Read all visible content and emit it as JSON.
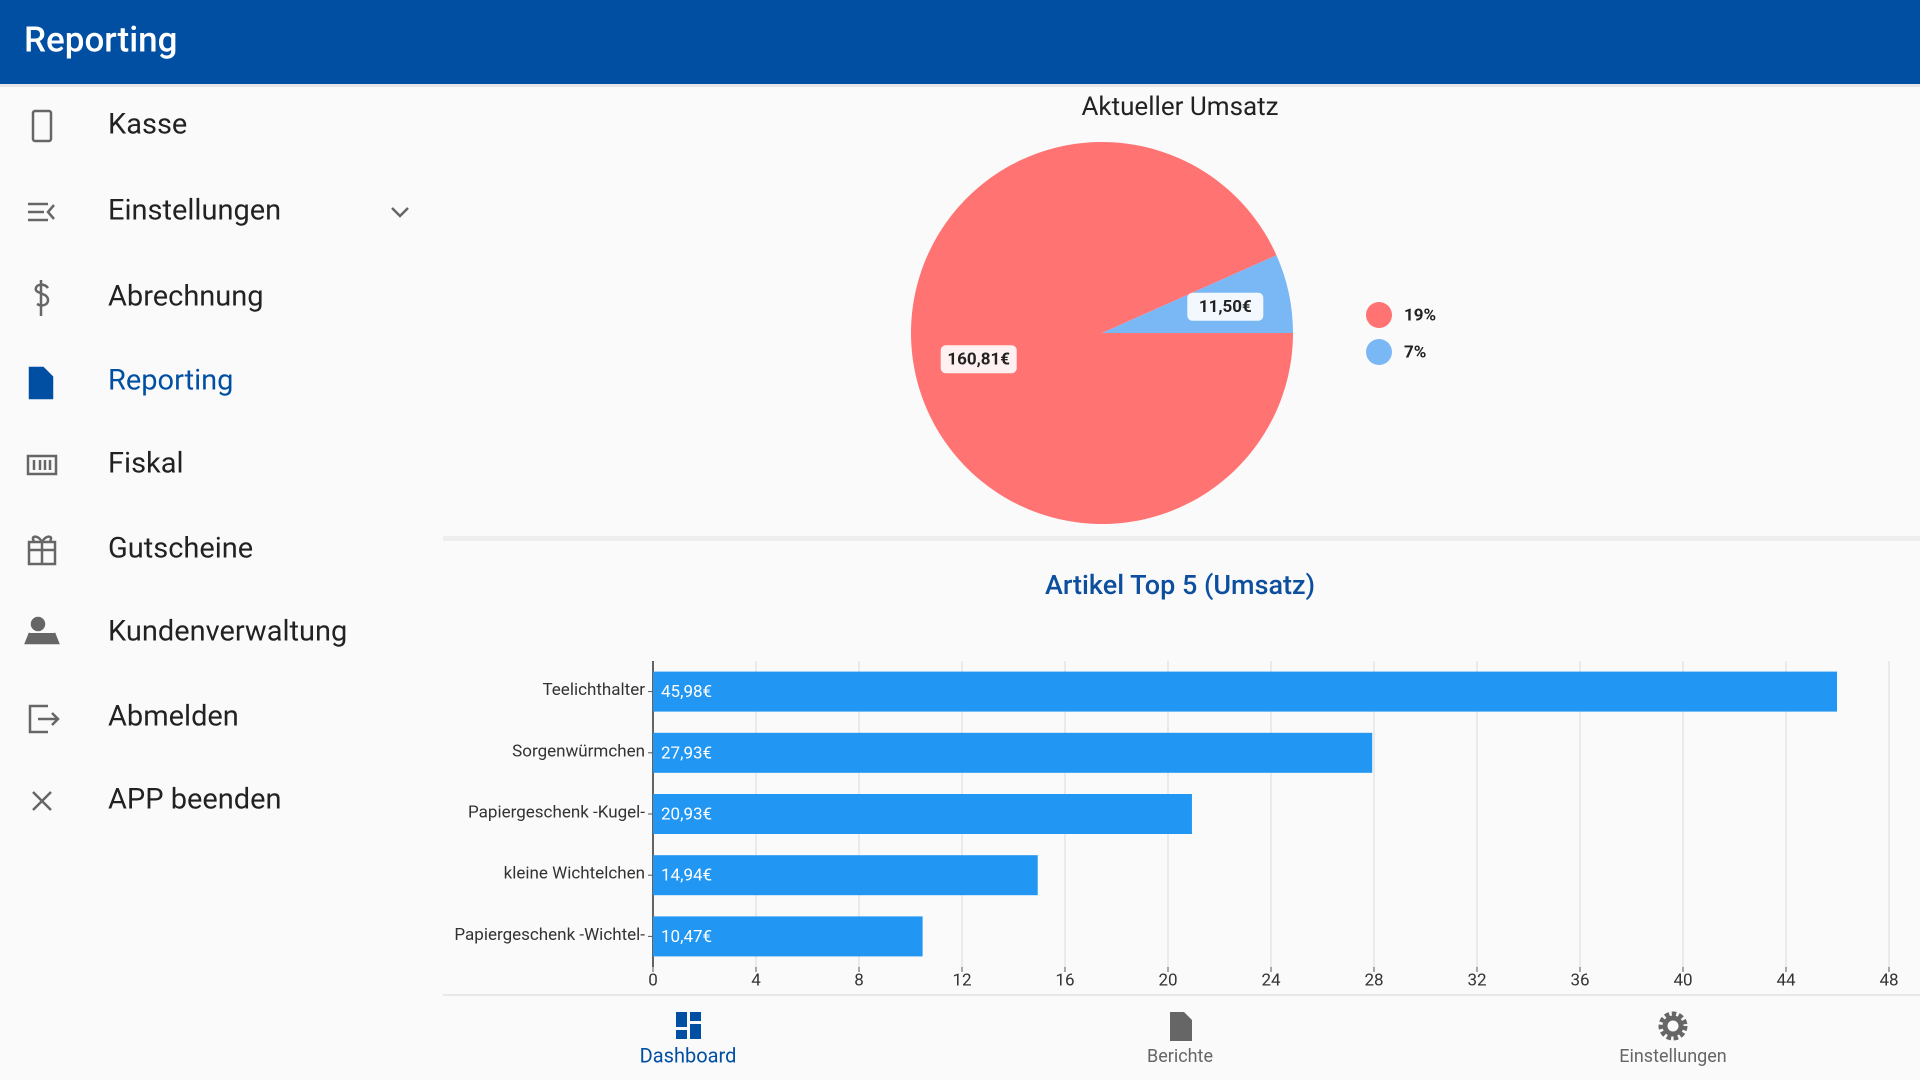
{
  "header": {
    "title": "Reporting"
  },
  "menu": {
    "items": [
      "Kasse",
      "Einstellungen",
      "Abrechnung",
      "Reporting",
      "Fiskal",
      "Gutscheine",
      "Kundenverwaltung",
      "Abmelden",
      "APP beenden"
    ]
  },
  "chart_data": [
    {
      "type": "pie",
      "title": "Aktueller Umsatz",
      "categories": [
        "19%",
        "7%"
      ],
      "values": [
        160.81,
        11.5
      ],
      "value_labels": [
        "160,81€",
        "11,50€"
      ],
      "colors": [
        "#ff7373",
        "#7ab8f5"
      ]
    },
    {
      "type": "bar",
      "orientation": "horizontal",
      "title": "Artikel Top 5 (Umsatz)",
      "categories": [
        "Teelichthalter",
        "Sorgenwürmchen",
        "Papiergeschenk -Kugel-",
        "kleine Wichtelchen",
        "Papiergeschenk -Wichtel-"
      ],
      "values": [
        45.98,
        27.93,
        20.93,
        14.94,
        10.47
      ],
      "value_labels": [
        "45,98€",
        "27,93€",
        "20,93€",
        "14,94€",
        "10,47€"
      ],
      "color": "#2196f3",
      "xlim": [
        0,
        48
      ],
      "xticks": [
        0,
        4,
        8,
        12,
        16,
        20,
        24,
        28,
        32,
        36,
        40,
        44,
        48
      ],
      "grid": true
    }
  ],
  "bottom_nav": {
    "items": [
      "Dashboard",
      "Berichte",
      "Einstellungen"
    ]
  }
}
